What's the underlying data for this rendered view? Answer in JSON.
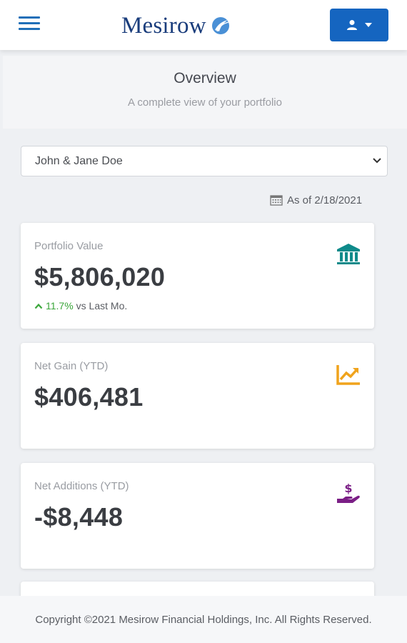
{
  "header": {
    "logo_text": "Mesirow",
    "menu_icon": "hamburger-menu-icon",
    "user_icon": "user-icon",
    "caret_icon": "caret-down-icon",
    "accent_color": "#1565c0",
    "logo_color": "#1a3d7c"
  },
  "overview": {
    "title": "Overview",
    "subtitle": "A complete view of your portfolio"
  },
  "account_select": {
    "selected": "John & Jane Doe"
  },
  "as_of": {
    "icon": "calendar-icon",
    "text": "As of 2/18/2021"
  },
  "cards": [
    {
      "label": "Portfolio Value",
      "value": "$5,806,020",
      "change_pct": "11.7%",
      "change_text": "vs Last Mo.",
      "icon": "bank-icon",
      "icon_color": "#0e8a8a",
      "change_color": "#3aa63a"
    },
    {
      "label": "Net Gain (YTD)",
      "value": "$406,481",
      "icon": "trend-chart-icon",
      "icon_color": "#f0a31c"
    },
    {
      "label": "Net Additions (YTD)",
      "value": "-$8,448",
      "icon": "dollar-hand-icon",
      "icon_color": "#7b1f86"
    }
  ],
  "footer": {
    "copyright": "Copyright ©2021 Mesirow Financial Holdings, Inc. All Rights Reserved."
  }
}
